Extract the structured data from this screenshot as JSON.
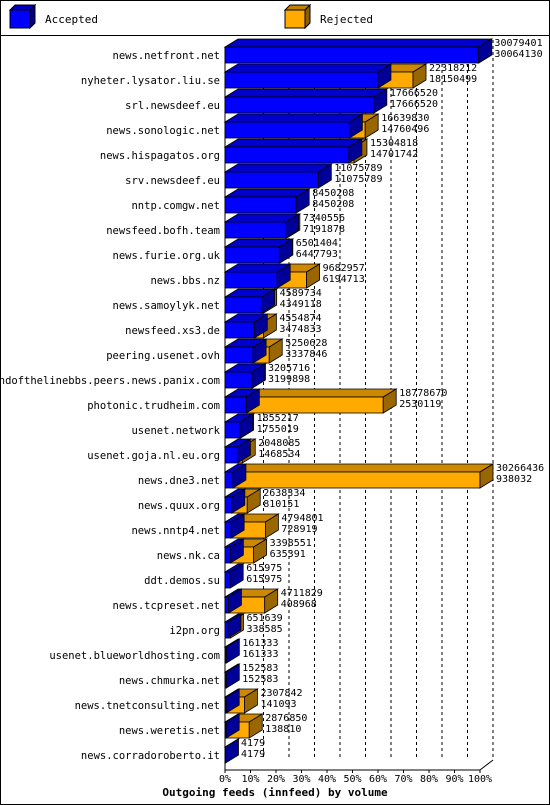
{
  "chart_data": {
    "type": "bar",
    "orientation": "horizontal",
    "stacked": "overlay",
    "title": "Outgoing feeds (innfeed) by volume",
    "xlim": [
      0,
      100
    ],
    "x_tick_labels": [
      "0%",
      "10%",
      "20%",
      "30%",
      "40%",
      "50%",
      "60%",
      "70%",
      "80%",
      "90%",
      "100%"
    ],
    "grid": true,
    "legend_position": "top",
    "legend": [
      {
        "name": "Accepted",
        "color": "#0000ff"
      },
      {
        "name": "Rejected",
        "color": "#ffaa00"
      }
    ],
    "rows": [
      {
        "label": "news.netfront.net",
        "total": "30079401",
        "accepted": "30064130"
      },
      {
        "label": "nyheter.lysator.liu.se",
        "total": "22318212",
        "accepted": "18150499"
      },
      {
        "label": "srl.newsdeef.eu",
        "total": "17666520",
        "accepted": "17666520"
      },
      {
        "label": "news.sonologic.net",
        "total": "16639830",
        "accepted": "14760496"
      },
      {
        "label": "news.hispagatos.org",
        "total": "15304818",
        "accepted": "14701742"
      },
      {
        "label": "srv.newsdeef.eu",
        "total": "11075789",
        "accepted": "11075789"
      },
      {
        "label": "nntp.comgw.net",
        "total": "8450208",
        "accepted": "8450208"
      },
      {
        "label": "newsfeed.bofh.team",
        "total": "7340556",
        "accepted": "7191878"
      },
      {
        "label": "news.furie.org.uk",
        "total": "6501404",
        "accepted": "6447793"
      },
      {
        "label": "news.bbs.nz",
        "total": "9682957",
        "accepted": "6194713"
      },
      {
        "label": "news.samoylyk.net",
        "total": "4589734",
        "accepted": "4349118"
      },
      {
        "label": "newsfeed.xs3.de",
        "total": "4554874",
        "accepted": "3474833"
      },
      {
        "label": "peering.usenet.ovh",
        "total": "5250628",
        "accepted": "3337846"
      },
      {
        "label": "endofthelinebbs.peers.news.panix.com",
        "total": "3205716",
        "accepted": "3199898"
      },
      {
        "label": "photonic.trudheim.com",
        "total": "18778670",
        "accepted": "2530119"
      },
      {
        "label": "usenet.network",
        "total": "1855217",
        "accepted": "1755019"
      },
      {
        "label": "usenet.goja.nl.eu.org",
        "total": "2048085",
        "accepted": "1468534"
      },
      {
        "label": "news.dne3.net",
        "total": "30266436",
        "accepted": "938032"
      },
      {
        "label": "news.quux.org",
        "total": "2638334",
        "accepted": "810151"
      },
      {
        "label": "news.nntp4.net",
        "total": "4794801",
        "accepted": "728919"
      },
      {
        "label": "news.nk.ca",
        "total": "3398551",
        "accepted": "635391"
      },
      {
        "label": "ddt.demos.su",
        "total": "615975",
        "accepted": "615975"
      },
      {
        "label": "news.tcpreset.net",
        "total": "4711829",
        "accepted": "408968"
      },
      {
        "label": "i2pn.org",
        "total": "651639",
        "accepted": "338585"
      },
      {
        "label": "usenet.blueworldhosting.com",
        "total": "161333",
        "accepted": "161333"
      },
      {
        "label": "news.chmurka.net",
        "total": "152583",
        "accepted": "152583"
      },
      {
        "label": "news.tnetconsulting.net",
        "total": "2307842",
        "accepted": "141093"
      },
      {
        "label": "news.weretis.net",
        "total": "2876850",
        "accepted": "138810"
      },
      {
        "label": "news.corradoroberto.it",
        "total": "4179",
        "accepted": "4179"
      }
    ]
  }
}
